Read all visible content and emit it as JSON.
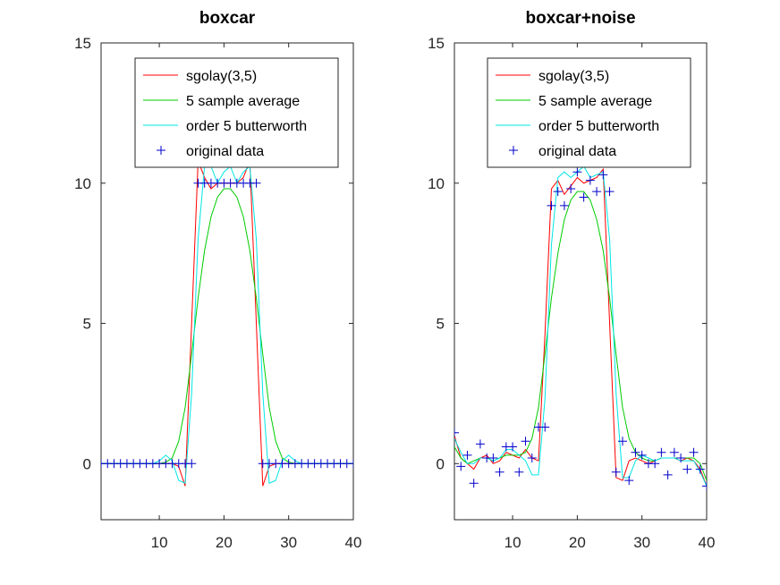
{
  "chart_data": [
    {
      "type": "line",
      "title": "boxcar",
      "xlim": [
        1,
        40
      ],
      "ylim": [
        -2,
        15
      ],
      "xticks": [
        10,
        20,
        30,
        40
      ],
      "yticks": [
        0,
        5,
        10,
        15
      ],
      "grid": false,
      "legend_position": "top-center",
      "x": [
        1,
        2,
        3,
        4,
        5,
        6,
        7,
        8,
        9,
        10,
        11,
        12,
        13,
        14,
        15,
        16,
        17,
        18,
        19,
        20,
        21,
        22,
        23,
        24,
        25,
        26,
        27,
        28,
        29,
        30,
        31,
        32,
        33,
        34,
        35,
        36,
        37,
        38,
        39,
        40
      ],
      "series": [
        {
          "name": "sgolay(3,5)",
          "color": "#ff0000",
          "style": "line",
          "values": [
            0,
            0,
            0,
            0,
            0,
            0,
            0,
            0,
            0,
            0,
            0,
            0,
            -0.1,
            -0.8,
            5.0,
            10.8,
            10.2,
            9.8,
            10.0,
            10.0,
            10.0,
            10.0,
            10.2,
            10.8,
            5.0,
            -0.8,
            -0.1,
            0,
            0,
            0,
            0,
            0,
            0,
            0,
            0,
            0,
            0,
            0,
            0,
            0
          ]
        },
        {
          "name": "5 sample average",
          "color": "#00cc00",
          "style": "line",
          "values": [
            0,
            0,
            0,
            0,
            0,
            0,
            0,
            0,
            0,
            0,
            0.05,
            0.2,
            0.8,
            2.0,
            3.9,
            5.9,
            7.6,
            8.8,
            9.5,
            9.8,
            9.8,
            9.5,
            8.8,
            7.6,
            5.9,
            3.9,
            2.0,
            0.8,
            0.2,
            0.05,
            0,
            0,
            0,
            0,
            0,
            0,
            0,
            0,
            0,
            0
          ]
        },
        {
          "name": "order 5 butterworth",
          "color": "#00e5e5",
          "style": "line",
          "values": [
            0,
            0,
            0,
            0,
            0,
            0,
            0,
            0,
            0,
            0.1,
            0.3,
            0.1,
            -0.6,
            -0.7,
            2.5,
            8.0,
            10.6,
            10.6,
            10.0,
            10.4,
            10.6,
            10.0,
            10.4,
            10.6,
            8.0,
            2.5,
            -0.7,
            -0.6,
            0.1,
            0.3,
            0.1,
            0,
            0,
            0,
            0,
            0,
            0,
            0,
            0,
            0
          ]
        },
        {
          "name": "original data",
          "color": "#0000cc",
          "style": "marker",
          "values": [
            0,
            0,
            0,
            0,
            0,
            0,
            0,
            0,
            0,
            0,
            0,
            0,
            0,
            0,
            0,
            10,
            10,
            10,
            10,
            10,
            10,
            10,
            10,
            10,
            10,
            0,
            0,
            0,
            0,
            0,
            0,
            0,
            0,
            0,
            0,
            0,
            0,
            0,
            0,
            0
          ]
        }
      ]
    },
    {
      "type": "line",
      "title": "boxcar+noise",
      "xlim": [
        1,
        40
      ],
      "ylim": [
        -2,
        15
      ],
      "xticks": [
        10,
        20,
        30,
        40
      ],
      "yticks": [
        0,
        5,
        10,
        15
      ],
      "grid": false,
      "legend_position": "top-center",
      "x": [
        1,
        2,
        3,
        4,
        5,
        6,
        7,
        8,
        9,
        10,
        11,
        12,
        13,
        14,
        15,
        16,
        17,
        18,
        19,
        20,
        21,
        22,
        23,
        24,
        25,
        26,
        27,
        28,
        29,
        30,
        31,
        32,
        33,
        34,
        35,
        36,
        37,
        38,
        39,
        40
      ],
      "series": [
        {
          "name": "sgolay(3,5)",
          "color": "#ff0000",
          "style": "line",
          "values": [
            1.0,
            0.2,
            0.0,
            -0.2,
            0.2,
            0.3,
            0.0,
            0.1,
            0.4,
            0.3,
            0.2,
            0.5,
            0.2,
            0.1,
            4.6,
            9.8,
            10.1,
            9.6,
            9.9,
            10.2,
            10.0,
            10.1,
            10.2,
            10.5,
            5.0,
            -0.5,
            -0.6,
            0.1,
            0.2,
            0.1,
            0.0,
            0.1,
            0.2,
            0.2,
            0.2,
            0.1,
            0.2,
            0.1,
            -0.2,
            -0.8
          ]
        },
        {
          "name": "5 sample average",
          "color": "#00cc00",
          "style": "line",
          "values": [
            0.6,
            0.2,
            0.0,
            0.1,
            0.2,
            0.2,
            0.1,
            0.2,
            0.3,
            0.3,
            0.3,
            0.4,
            0.9,
            2.0,
            3.9,
            5.9,
            7.5,
            8.7,
            9.4,
            9.7,
            9.7,
            9.4,
            8.7,
            7.6,
            5.9,
            3.9,
            2.0,
            0.9,
            0.4,
            0.2,
            0.1,
            0.1,
            0.2,
            0.2,
            0.2,
            0.2,
            0.2,
            0.2,
            0.0,
            -0.6
          ]
        },
        {
          "name": "order 5 butterworth",
          "color": "#00e5e5",
          "style": "line",
          "values": [
            0.9,
            0.4,
            0.0,
            0.0,
            0.2,
            0.2,
            0.1,
            0.2,
            0.5,
            0.5,
            0.3,
            0.1,
            -0.4,
            -0.4,
            2.3,
            7.8,
            10.2,
            10.4,
            10.2,
            10.4,
            10.6,
            10.2,
            10.3,
            10.4,
            8.0,
            2.5,
            -0.5,
            -0.5,
            0.1,
            0.3,
            0.2,
            0.1,
            0.2,
            0.2,
            0.2,
            0.1,
            0.1,
            0.1,
            -0.3,
            -0.8
          ]
        },
        {
          "name": "original data",
          "color": "#0000cc",
          "style": "marker",
          "values": [
            1.1,
            -0.1,
            0.3,
            -0.7,
            0.7,
            0.2,
            0.2,
            -0.3,
            0.6,
            0.6,
            -0.3,
            0.8,
            0.2,
            1.3,
            1.3,
            9.2,
            9.7,
            9.2,
            9.8,
            10.4,
            9.5,
            10.1,
            9.7,
            10.3,
            9.7,
            -0.3,
            0.8,
            -0.6,
            0.4,
            0.3,
            0.0,
            0.0,
            0.4,
            -0.4,
            0.4,
            0.2,
            -0.2,
            0.4,
            -0.2,
            -0.8
          ]
        }
      ]
    }
  ]
}
